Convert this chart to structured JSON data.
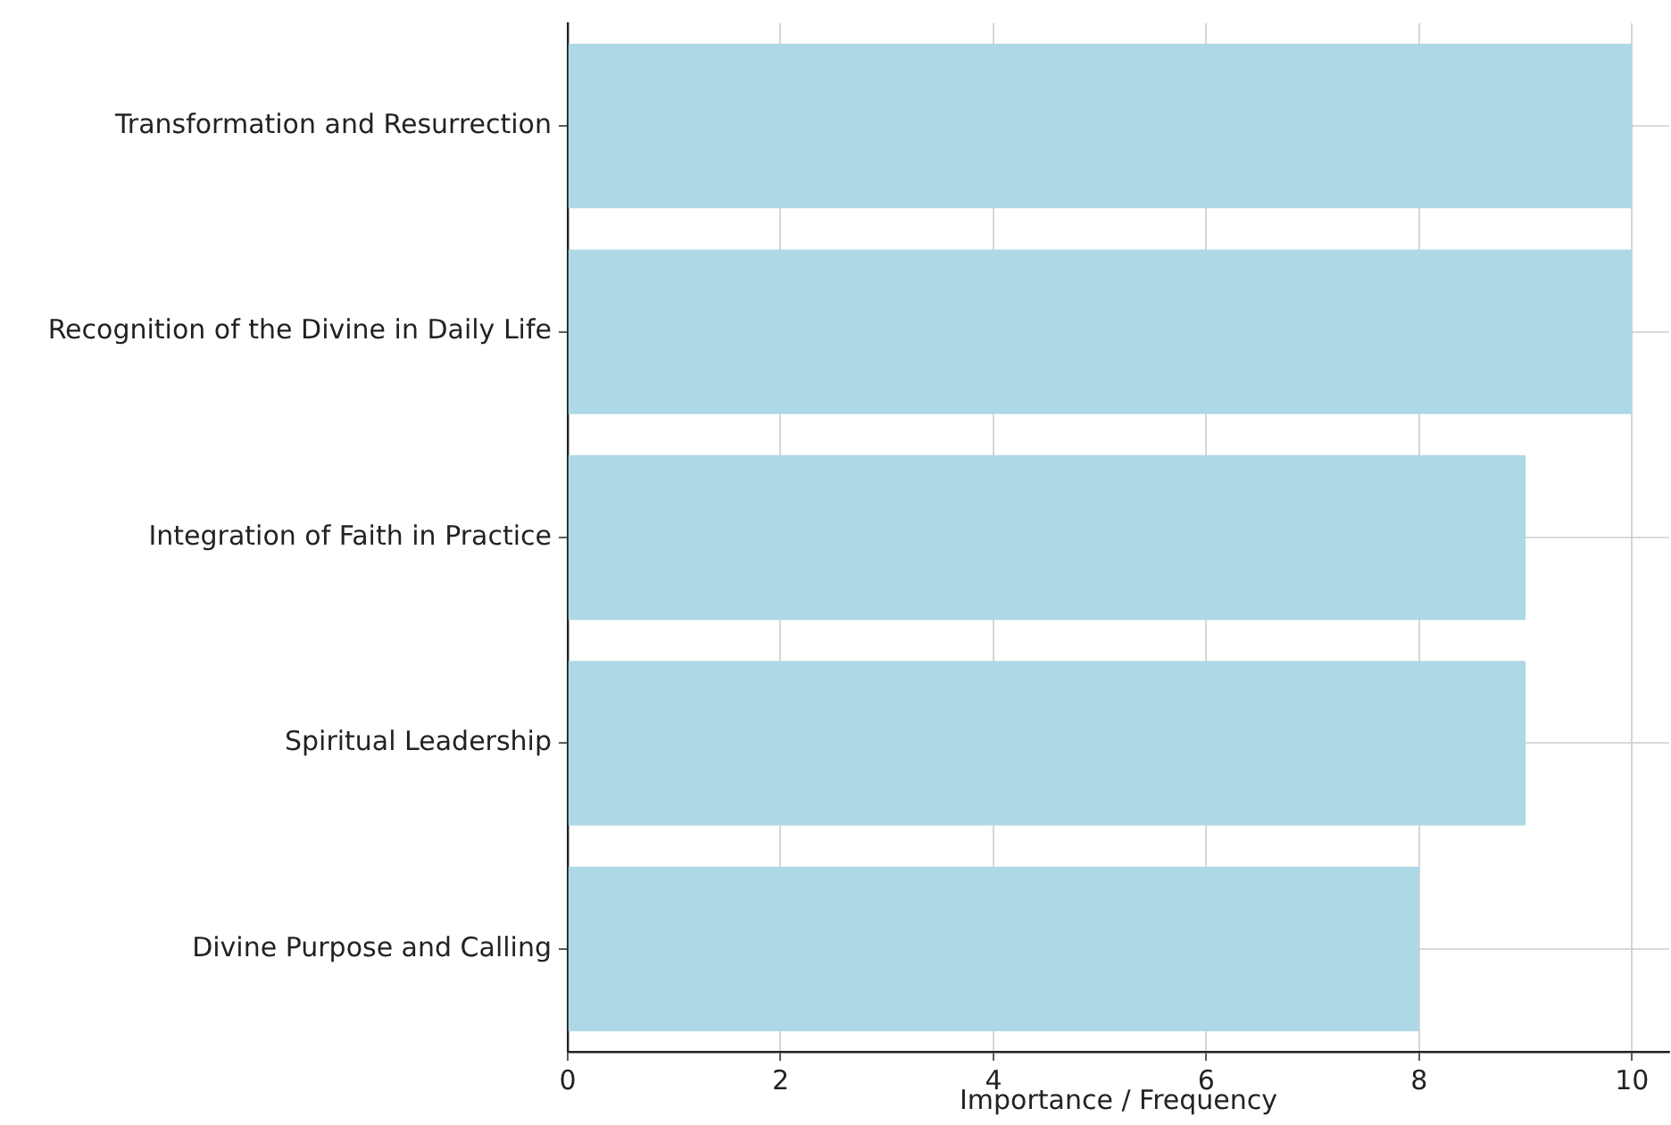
{
  "chart_data": {
    "type": "bar",
    "orientation": "horizontal",
    "xlabel": "Importance / Frequency",
    "categories": [
      "Transformation and Resurrection",
      "Recognition of the Divine in Daily Life",
      "Integration of Faith in Practice",
      "Spiritual Leadership",
      "Divine Purpose and Calling"
    ],
    "values": [
      10,
      10,
      9,
      9,
      8
    ],
    "color": "#add8e6",
    "xlim": [
      0,
      10.35
    ],
    "xticks": [
      0,
      2,
      4,
      6,
      8,
      10
    ],
    "grid": true,
    "legend": false
  }
}
